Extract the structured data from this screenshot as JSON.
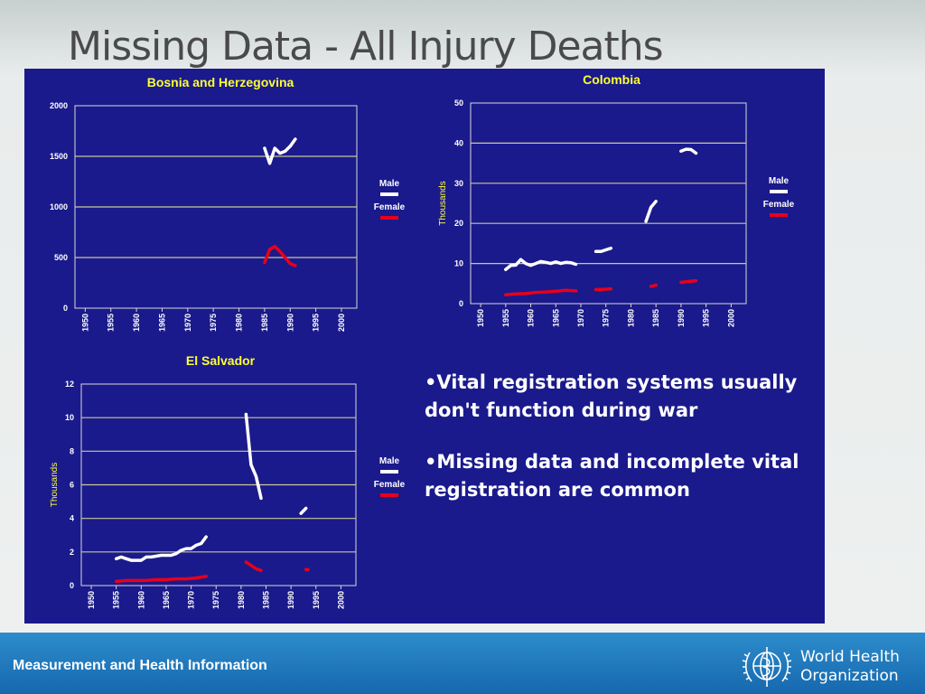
{
  "slide": {
    "title": "Missing Data - All Injury Deaths",
    "bullets": [
      "•Vital registration systems usually don't function during war",
      "•Missing data and incomplete vital registration are common"
    ],
    "footer": "Measurement and Health Information",
    "logo_text": [
      "World Health",
      "Organization"
    ]
  },
  "colors": {
    "panel": "#1a1a8c",
    "male": "#ffffff",
    "female": "#e8001a",
    "chart_title": "#ffff33",
    "grid": "#c8c896"
  },
  "chart_data": [
    {
      "type": "line",
      "title": "Bosnia and Herzegovina",
      "ylabel": "",
      "xlabel": "",
      "xlim": [
        1948,
        2003
      ],
      "ylim": [
        0,
        2000
      ],
      "yticks": [
        0,
        500,
        1000,
        1500,
        2000
      ],
      "xticks": [
        1950,
        1955,
        1960,
        1965,
        1970,
        1975,
        1980,
        1985,
        1990,
        1995,
        2000
      ],
      "legend": [
        "Male",
        "Female"
      ],
      "series": [
        {
          "name": "Male",
          "segments": [
            [
              [
                1985,
                1580
              ],
              [
                1986,
                1430
              ],
              [
                1987,
                1580
              ],
              [
                1988,
                1530
              ],
              [
                1989,
                1550
              ],
              [
                1990,
                1600
              ],
              [
                1991,
                1670
              ]
            ]
          ]
        },
        {
          "name": "Female",
          "segments": [
            [
              [
                1985,
                450
              ],
              [
                1986,
                580
              ],
              [
                1987,
                610
              ],
              [
                1988,
                560
              ],
              [
                1989,
                500
              ],
              [
                1990,
                440
              ],
              [
                1991,
                420
              ]
            ]
          ]
        }
      ]
    },
    {
      "type": "line",
      "title": "Colombia",
      "ylabel": "Thousands",
      "xlabel": "",
      "xlim": [
        1948,
        2003
      ],
      "ylim": [
        0,
        50
      ],
      "yticks": [
        0,
        10,
        20,
        30,
        40,
        50
      ],
      "xticks": [
        1950,
        1955,
        1960,
        1965,
        1970,
        1975,
        1980,
        1985,
        1990,
        1995,
        2000
      ],
      "legend": [
        "Male",
        "Female"
      ],
      "series": [
        {
          "name": "Male",
          "segments": [
            [
              [
                1955,
                8.5
              ],
              [
                1956,
                9.5
              ],
              [
                1957,
                9.6
              ],
              [
                1958,
                11
              ],
              [
                1959,
                10
              ],
              [
                1960,
                9.5
              ],
              [
                1961,
                10
              ],
              [
                1962,
                10.5
              ],
              [
                1963,
                10.3
              ],
              [
                1964,
                10
              ],
              [
                1965,
                10.4
              ],
              [
                1966,
                10
              ],
              [
                1967,
                10.3
              ],
              [
                1968,
                10.2
              ],
              [
                1969,
                9.8
              ]
            ],
            [
              [
                1973,
                13
              ],
              [
                1974,
                13
              ],
              [
                1975,
                13.4
              ],
              [
                1976,
                13.8
              ]
            ],
            [
              [
                1983,
                20.5
              ],
              [
                1984,
                24
              ],
              [
                1985,
                25.5
              ]
            ],
            [
              [
                1990,
                38
              ],
              [
                1991,
                38.5
              ],
              [
                1992,
                38.4
              ],
              [
                1993,
                37.5
              ]
            ]
          ]
        },
        {
          "name": "Female",
          "segments": [
            [
              [
                1955,
                2.2
              ],
              [
                1957,
                2.4
              ],
              [
                1959,
                2.5
              ],
              [
                1961,
                2.8
              ],
              [
                1963,
                2.9
              ],
              [
                1965,
                3.1
              ],
              [
                1967,
                3.3
              ],
              [
                1969,
                3.2
              ]
            ],
            [
              [
                1973,
                3.5
              ],
              [
                1975,
                3.6
              ],
              [
                1976,
                3.7
              ]
            ],
            [
              [
                1984,
                4.3
              ],
              [
                1985,
                4.6
              ]
            ],
            [
              [
                1990,
                5.3
              ],
              [
                1992,
                5.6
              ],
              [
                1993,
                5.7
              ]
            ]
          ]
        }
      ]
    },
    {
      "type": "line",
      "title": "El Salvador",
      "ylabel": "Thousands",
      "xlabel": "",
      "xlim": [
        1948,
        2003
      ],
      "ylim": [
        0,
        12
      ],
      "yticks": [
        0,
        2,
        4,
        6,
        8,
        10,
        12
      ],
      "xticks": [
        1950,
        1955,
        1960,
        1965,
        1970,
        1975,
        1980,
        1985,
        1990,
        1995,
        2000
      ],
      "legend": [
        "Male",
        "Female"
      ],
      "series": [
        {
          "name": "Male",
          "segments": [
            [
              [
                1955,
                1.6
              ],
              [
                1956,
                1.7
              ],
              [
                1957,
                1.6
              ],
              [
                1958,
                1.5
              ],
              [
                1960,
                1.5
              ],
              [
                1961,
                1.7
              ],
              [
                1962,
                1.7
              ],
              [
                1964,
                1.8
              ],
              [
                1966,
                1.8
              ],
              [
                1967,
                1.9
              ],
              [
                1968,
                2.1
              ],
              [
                1969,
                2.2
              ],
              [
                1970,
                2.2
              ],
              [
                1971,
                2.4
              ],
              [
                1972,
                2.5
              ],
              [
                1973,
                2.9
              ]
            ],
            [
              [
                1981,
                10.2
              ],
              [
                1982,
                7.2
              ],
              [
                1983,
                6.5
              ],
              [
                1984,
                5.2
              ]
            ],
            [
              [
                1992,
                4.3
              ],
              [
                1993,
                4.6
              ]
            ]
          ]
        },
        {
          "name": "Female",
          "segments": [
            [
              [
                1955,
                0.25
              ],
              [
                1957,
                0.3
              ],
              [
                1959,
                0.3
              ],
              [
                1961,
                0.3
              ],
              [
                1963,
                0.35
              ],
              [
                1965,
                0.35
              ],
              [
                1967,
                0.4
              ],
              [
                1969,
                0.4
              ],
              [
                1971,
                0.45
              ],
              [
                1973,
                0.55
              ]
            ],
            [
              [
                1981,
                1.4
              ],
              [
                1982,
                1.2
              ],
              [
                1983,
                1.0
              ],
              [
                1984,
                0.9
              ]
            ],
            [
              [
                1993,
                0.95
              ],
              [
                1993.4,
                0.95
              ]
            ]
          ]
        }
      ]
    }
  ]
}
